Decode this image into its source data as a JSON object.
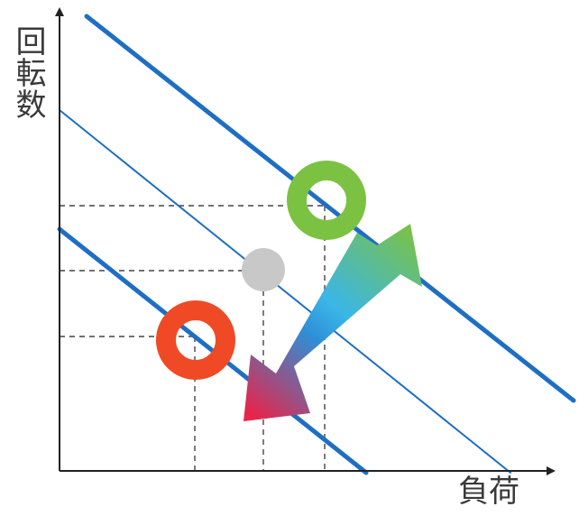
{
  "diagram": {
    "y_axis_label": "回転数",
    "x_axis_label": "負荷",
    "colors": {
      "axis": "#222222",
      "lines": "#1e6fc4",
      "guides": "#444444",
      "high_marker": "#7cc242",
      "mid_marker": "#c8c8c8",
      "low_marker": "#ef4a25",
      "arrow_top": "#7cc242",
      "arrow_mid": "#3ab6e8",
      "arrow_bottom": "#e8244a"
    },
    "markers": [
      {
        "name": "high-operating-point",
        "kind": "ring"
      },
      {
        "name": "mid-operating-point",
        "kind": "dot"
      },
      {
        "name": "low-operating-point",
        "kind": "ring"
      }
    ],
    "arrow": {
      "direction": "bidirectional"
    }
  }
}
